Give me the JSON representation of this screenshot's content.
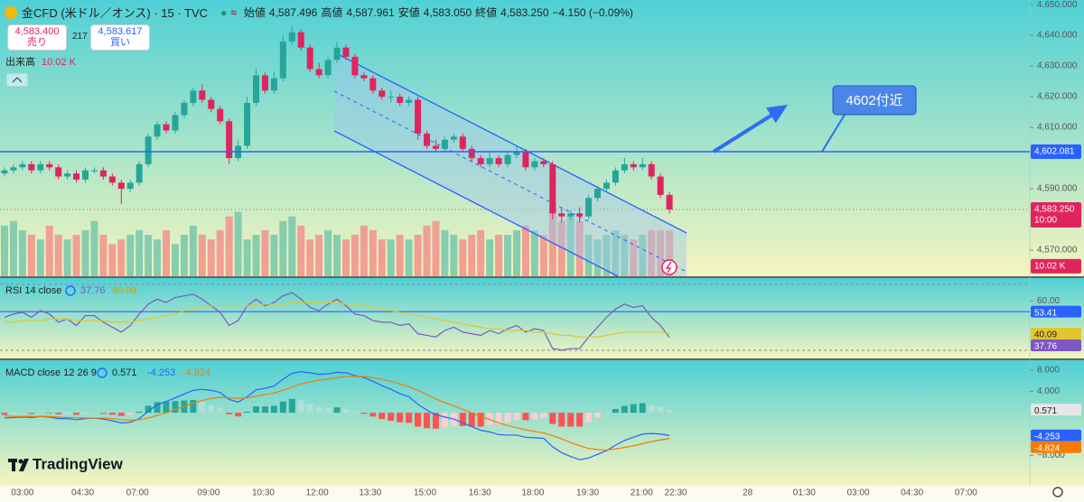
{
  "header": {
    "symbol": "金CFD (米ドル／オンス) · 15 · TVC",
    "ohlc": [
      {
        "label": "始値",
        "value": "4,587.496"
      },
      {
        "label": "高値",
        "value": "4,587.961"
      },
      {
        "label": "安値",
        "value": "4,583.050"
      },
      {
        "label": "終値",
        "value": "4,583.250"
      }
    ],
    "change": "−4.150 (−0.09%)",
    "sell": {
      "price": "4,583.400",
      "label": "売り"
    },
    "spread": "217",
    "buy": {
      "price": "4,583.617",
      "label": "買い"
    }
  },
  "annotation": "4602付近",
  "branding": "TradingView",
  "chart_data": [
    {
      "type": "candlestick",
      "xlim": [
        -0.5,
        114.1
      ],
      "xticks": [
        {
          "value": 2,
          "label": "03:00"
        },
        {
          "value": 8.7,
          "label": "04:30"
        },
        {
          "value": 14.8,
          "label": "07:00"
        },
        {
          "value": 22.7,
          "label": "09:00"
        },
        {
          "value": 28.8,
          "label": "10:30"
        },
        {
          "value": 34.8,
          "label": "12:00"
        },
        {
          "value": 40.7,
          "label": "13:30"
        },
        {
          "value": 46.8,
          "label": "15:00"
        },
        {
          "value": 52.9,
          "label": "16:30"
        },
        {
          "value": 58.8,
          "label": "18:00"
        },
        {
          "value": 64.9,
          "label": "19:30"
        },
        {
          "value": 70.9,
          "label": "21:00"
        },
        {
          "value": 74.7,
          "label": "22:30"
        },
        {
          "value": 82.7,
          "label": "28"
        },
        {
          "value": 89,
          "label": "01:30"
        },
        {
          "value": 95,
          "label": "03:00"
        },
        {
          "value": 101,
          "label": "04:30"
        },
        {
          "value": 107,
          "label": "07:00"
        }
      ],
      "ylim": [
        4561.5,
        4651.5
      ],
      "yticks": [
        {
          "value": 4650,
          "label": "4,650.000"
        },
        {
          "value": 4640,
          "label": "4,640.000"
        },
        {
          "value": 4630,
          "label": "4,630.000"
        },
        {
          "value": 4620,
          "label": "4,620.000"
        },
        {
          "value": 4610,
          "label": "4,610.000"
        },
        {
          "value": 4590,
          "label": "4,590.000"
        },
        {
          "value": 4570,
          "label": "4,570.000"
        }
      ],
      "colors": {
        "up": "#26a69a",
        "down": "#e0245e",
        "volume_up": "#7cc9ae",
        "volume_down": "#f2968f"
      },
      "open": [
        4595,
        4596,
        4597,
        4598,
        4596,
        4598,
        4597,
        4594,
        4595,
        4593,
        4596,
        4596,
        4594,
        4592,
        4590,
        4592,
        4598,
        4607,
        4611,
        4609,
        4614,
        4618,
        4622,
        4619,
        4616,
        4612,
        4600,
        4604,
        4618,
        4627,
        4622,
        4626,
        4638,
        4641,
        4636,
        4629,
        4627,
        4632,
        4636,
        4633,
        4627,
        4626,
        4622,
        4620,
        4620,
        4618,
        4619,
        4608,
        4604,
        4603,
        4606,
        4607,
        4603,
        4600,
        4598,
        4600,
        4598,
        4601,
        4602,
        4597,
        4599,
        4598,
        4582,
        4581,
        4582,
        4581,
        4587,
        4590,
        4592,
        4596,
        4598,
        4597,
        4598,
        4594,
        4588
      ],
      "high": [
        4597,
        4598,
        4599,
        4599,
        4599,
        4599,
        4598,
        4596,
        4596,
        4597,
        4597,
        4597,
        4595,
        4593,
        4593,
        4599,
        4608,
        4612,
        4612,
        4615,
        4619,
        4623,
        4624,
        4620,
        4617,
        4613,
        4606,
        4620,
        4629,
        4628,
        4628,
        4640,
        4643,
        4642,
        4637,
        4631,
        4633,
        4638,
        4637,
        4634,
        4628,
        4627,
        4623,
        4622,
        4621,
        4620,
        4620,
        4609,
        4606,
        4607,
        4608,
        4608,
        4604,
        4601,
        4602,
        4601,
        4602,
        4604,
        4603,
        4600,
        4600,
        4599,
        4584,
        4583,
        4584,
        4588,
        4591,
        4593,
        4597,
        4600,
        4599,
        4600,
        4599,
        4595,
        4589
      ],
      "low": [
        4594,
        4595,
        4596,
        4595,
        4595,
        4596,
        4593,
        4593,
        4592,
        4592,
        4595,
        4593,
        4591,
        4585,
        4589,
        4591,
        4597,
        4606,
        4608,
        4608,
        4613,
        4617,
        4618,
        4615,
        4611,
        4598,
        4599,
        4603,
        4617,
        4621,
        4621,
        4625,
        4637,
        4635,
        4628,
        4626,
        4626,
        4631,
        4632,
        4626,
        4625,
        4621,
        4619,
        4618,
        4617,
        4617,
        4606,
        4603,
        4602,
        4602,
        4605,
        4602,
        4599,
        4597,
        4597,
        4597,
        4597,
        4600,
        4596,
        4596,
        4597,
        4580,
        4579,
        4580,
        4579,
        4580,
        4586,
        4589,
        4591,
        4595,
        4596,
        4596,
        4593,
        4587,
        4582
      ],
      "close": [
        4596,
        4597,
        4598,
        4596,
        4598,
        4597,
        4594,
        4595,
        4593,
        4596,
        4596,
        4594,
        4592,
        4590,
        4592,
        4598,
        4607,
        4611,
        4609,
        4614,
        4618,
        4622,
        4619,
        4616,
        4612,
        4600,
        4604,
        4618,
        4627,
        4622,
        4626,
        4638,
        4641,
        4636,
        4629,
        4627,
        4632,
        4636,
        4633,
        4627,
        4626,
        4622,
        4620,
        4620,
        4618,
        4619,
        4608,
        4604,
        4603,
        4606,
        4607,
        4603,
        4600,
        4598,
        4600,
        4598,
        4601,
        4602,
        4597,
        4599,
        4598,
        4582,
        4581,
        4582,
        4581,
        4587,
        4590,
        4592,
        4596,
        4598,
        4597,
        4598,
        4594,
        4588,
        4583.25
      ],
      "hline": {
        "value": 4602.081,
        "label": "4,602.081"
      },
      "countdown": "10:00",
      "volume": {
        "title": "出来高",
        "label": "10.02 K",
        "vlim": [
          0,
          60
        ],
        "values": [
          11,
          12,
          10,
          9,
          8,
          11,
          9,
          8,
          9,
          10,
          12,
          9,
          7,
          8,
          9,
          10,
          9,
          8,
          10,
          7,
          9,
          11,
          9,
          8,
          10,
          13,
          14,
          8,
          9,
          10,
          9,
          12,
          13,
          11,
          8,
          9,
          10,
          9,
          8,
          9,
          11,
          10,
          8,
          8,
          9,
          8,
          9,
          11,
          12,
          10,
          9,
          8,
          9,
          10,
          8,
          9,
          9,
          10,
          11,
          10,
          9,
          15,
          12,
          13,
          12,
          9,
          8,
          9,
          10,
          9,
          8,
          9,
          10,
          10,
          10.02
        ]
      }
    },
    {
      "type": "line",
      "title": "RSI 14 close",
      "ylim": [
        25,
        73.8
      ],
      "yticks": [
        {
          "value": 60,
          "label": "60.00"
        }
      ],
      "hline": 53.41,
      "hline_color": "#2962ff",
      "series": [
        {
          "color": "#7e57c2",
          "values": [
            50,
            52,
            53,
            50,
            54,
            52,
            47,
            49,
            45,
            51,
            51,
            47,
            44,
            41,
            45,
            52,
            58,
            61,
            59,
            62,
            63,
            64,
            61,
            57,
            53,
            45,
            48,
            57,
            61,
            57,
            59,
            63,
            65,
            61,
            56,
            54,
            58,
            61,
            57,
            52,
            51,
            48,
            47,
            47,
            45,
            46,
            40,
            39,
            38,
            42,
            44,
            41,
            40,
            39,
            42,
            40,
            43,
            45,
            41,
            43,
            42,
            31,
            30,
            31,
            31,
            38,
            44,
            50,
            55,
            58,
            56,
            57,
            50,
            45,
            37.76
          ]
        },
        {
          "color": "#e3c530",
          "values": [
            47,
            47,
            48,
            48,
            48,
            49,
            49,
            49,
            48,
            48,
            48,
            48,
            47,
            47,
            47,
            48,
            49,
            50,
            51,
            52,
            54,
            55,
            56,
            57,
            57,
            57,
            57,
            57,
            58,
            58,
            58,
            58,
            59,
            59,
            59,
            59,
            59,
            59,
            58,
            58,
            57,
            56,
            55,
            54,
            53,
            52,
            51,
            50,
            49,
            48,
            47,
            46,
            45,
            44,
            43,
            43,
            42,
            42,
            42,
            41,
            41,
            40,
            39,
            39,
            38,
            38,
            38,
            39,
            40,
            41,
            41,
            41,
            41,
            41,
            40.09
          ]
        }
      ]
    },
    {
      "type": "macd",
      "title": "MACD close 12 26 9",
      "ylim": [
        -13.7,
        9.85
      ],
      "yticks": [
        {
          "value": 8,
          "label": "8.000"
        },
        {
          "value": 4,
          "label": "4.000"
        },
        {
          "value": -8,
          "label": "−8.000"
        }
      ],
      "histogram": {
        "colors": [
          "#26a69a",
          "#b2dfdb",
          "#ff5252",
          "#ffcdd2"
        ],
        "values": [
          -0.4,
          -0.2,
          -0.1,
          -0.2,
          0,
          -0.1,
          -0.3,
          -0.2,
          -0.4,
          -0.1,
          0,
          -0.2,
          -0.4,
          -0.6,
          -0.4,
          0.2,
          1.3,
          2,
          2.1,
          2.2,
          2.3,
          2.4,
          2.1,
          1.5,
          0.9,
          -0.3,
          -0.7,
          0.2,
          1.2,
          1.2,
          1.3,
          2.1,
          2.6,
          2.3,
          1.7,
          1.1,
          1,
          1,
          0.7,
          0.2,
          -0.2,
          -0.7,
          -1.2,
          -1.5,
          -1.8,
          -1.9,
          -2.6,
          -2.9,
          -3,
          -2.7,
          -2.5,
          -2.5,
          -2.6,
          -2.6,
          -2.3,
          -2.2,
          -1.8,
          -1.4,
          -1.4,
          -1.2,
          -1,
          -2.1,
          -2.6,
          -2.6,
          -2.6,
          -1.8,
          -0.9,
          -0.1,
          0.7,
          1.3,
          1.6,
          1.8,
          1.5,
          1.1,
          0.571
        ]
      },
      "series": [
        {
          "color": "#2962ff",
          "values": [
            -1,
            -0.9,
            -0.8,
            -0.9,
            -0.7,
            -0.8,
            -1.1,
            -1.1,
            -1.3,
            -1.1,
            -1,
            -1.2,
            -1.5,
            -1.9,
            -1.8,
            -1.1,
            0.3,
            1.5,
            2.1,
            2.8,
            3.5,
            4.2,
            4.4,
            4.2,
            3.8,
            2.5,
            2,
            3,
            4.3,
            4.6,
            5,
            6.3,
            7.4,
            7.7,
            7.5,
            7.2,
            7.3,
            7.6,
            7.5,
            7,
            6.6,
            5.9,
            5.1,
            4.4,
            3.6,
            3,
            1.6,
            0.5,
            -0.4,
            -0.8,
            -1.2,
            -1.9,
            -2.6,
            -3.3,
            -3.6,
            -4.1,
            -4.2,
            -4.2,
            -4.6,
            -4.7,
            -4.8,
            -6.4,
            -7.5,
            -8.2,
            -8.8,
            -8.5,
            -7.8,
            -7.1,
            -6.1,
            -5.2,
            -4.6,
            -4,
            -3.9,
            -4,
            -4.253
          ]
        },
        {
          "color": "#f57c00",
          "values": [
            -0.6,
            -0.7,
            -0.7,
            -0.7,
            -0.7,
            -0.7,
            -0.8,
            -0.9,
            -0.9,
            -1,
            -1,
            -1,
            -1.1,
            -1.3,
            -1.4,
            -1.3,
            -1,
            -0.5,
            0,
            0.6,
            1.2,
            1.8,
            2.3,
            2.7,
            2.9,
            2.8,
            2.7,
            2.8,
            3.1,
            3.4,
            3.7,
            4.2,
            4.8,
            5.4,
            5.8,
            6.1,
            6.3,
            6.6,
            6.8,
            6.8,
            6.8,
            6.6,
            6.3,
            5.9,
            5.4,
            4.9,
            4.2,
            3.4,
            2.6,
            1.9,
            1.3,
            0.6,
            0,
            -0.7,
            -1.3,
            -1.9,
            -2.4,
            -2.8,
            -3.2,
            -3.5,
            -3.8,
            -4.3,
            -4.9,
            -5.6,
            -6.2,
            -6.7,
            -6.9,
            -7,
            -6.8,
            -6.5,
            -6.2,
            -5.8,
            -5.4,
            -5.1,
            -4.824
          ]
        }
      ]
    }
  ]
}
